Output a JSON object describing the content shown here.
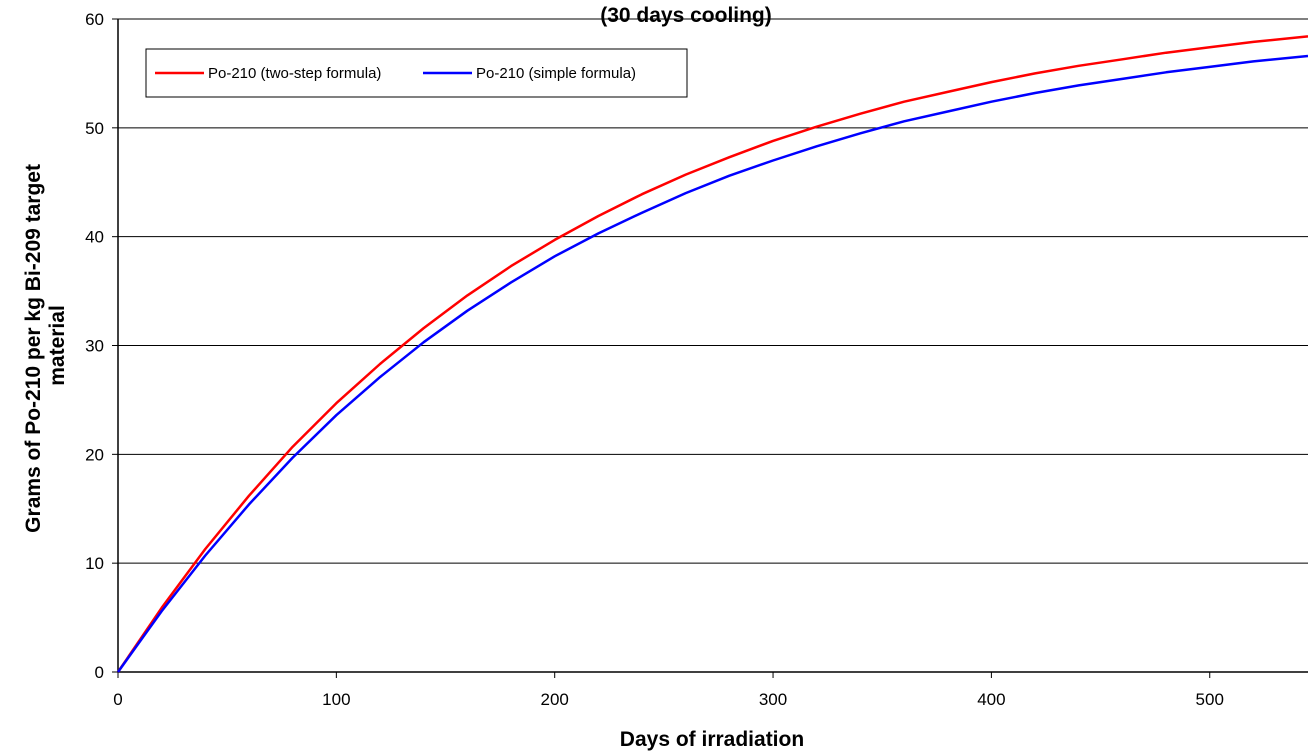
{
  "chart_data": {
    "type": "line",
    "title": "(30 days cooling)",
    "xlabel": "Days of irradiation",
    "ylabel": "Grams of Po-210  per kg Bi-209 target material",
    "xlim": [
      0,
      545
    ],
    "ylim": [
      0,
      60
    ],
    "xticks": [
      0,
      100,
      200,
      300,
      400,
      500
    ],
    "yticks": [
      0,
      10,
      20,
      30,
      40,
      50,
      60
    ],
    "grid": "horizontal",
    "legend_position": "top-left",
    "x": [
      0,
      20,
      40,
      60,
      80,
      100,
      120,
      140,
      160,
      180,
      200,
      220,
      240,
      260,
      280,
      300,
      320,
      340,
      360,
      380,
      400,
      420,
      440,
      460,
      480,
      500,
      520,
      545
    ],
    "series": [
      {
        "name": "Po-210 (two-step formula)",
        "color": "#ff0000",
        "values": [
          0,
          5.9,
          11.3,
          16.2,
          20.7,
          24.7,
          28.3,
          31.6,
          34.6,
          37.3,
          39.7,
          41.9,
          43.9,
          45.7,
          47.3,
          48.8,
          50.1,
          51.3,
          52.4,
          53.3,
          54.2,
          55.0,
          55.7,
          56.3,
          56.9,
          57.4,
          57.9,
          58.4
        ]
      },
      {
        "name": "Po-210 (simple formula)",
        "color": "#0000ff",
        "values": [
          0,
          5.6,
          10.7,
          15.4,
          19.7,
          23.6,
          27.1,
          30.3,
          33.2,
          35.8,
          38.2,
          40.3,
          42.2,
          44.0,
          45.6,
          47.0,
          48.3,
          49.5,
          50.6,
          51.5,
          52.4,
          53.2,
          53.9,
          54.5,
          55.1,
          55.6,
          56.1,
          56.6
        ]
      }
    ]
  }
}
